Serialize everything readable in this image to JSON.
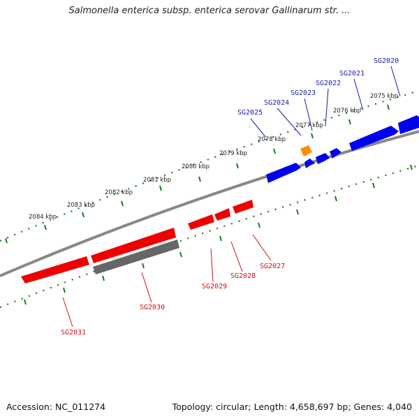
{
  "title": "Salmonella enterica subsp. enterica serovar Gallinarum str. ...",
  "accession": "Accession: NC_011274",
  "topology": "Topology: circular; Length: 4,658,697 bp; Genes: 4,040",
  "colors": {
    "forward": "#0000ee",
    "reverse": "#ee0000",
    "pseudo": "#666666",
    "rna": "#ff8c00",
    "backbone": "#808080",
    "ticks": "#1a7a1a",
    "forward_label": "#1a1aaa",
    "reverse_label": "#cc1111"
  },
  "scale_labels": [
    "2075 kbp",
    "2076 kbp",
    "2077 kbp",
    "2078 kbp",
    "2079 kbp",
    "2080 kbp",
    "2081 kbp",
    "2082 kbp",
    "2083 kbp",
    "2084 kbp"
  ],
  "genes": [
    {
      "id": "SG2020",
      "strand": "forward"
    },
    {
      "id": "SG2021",
      "strand": "forward"
    },
    {
      "id": "SG2022",
      "strand": "forward"
    },
    {
      "id": "SG2023",
      "strand": "forward"
    },
    {
      "id": "SG2024",
      "strand": "forward"
    },
    {
      "id": "SG2025",
      "strand": "forward"
    },
    {
      "id": "SG2027",
      "strand": "reverse"
    },
    {
      "id": "SG2028",
      "strand": "reverse"
    },
    {
      "id": "SG2029",
      "strand": "reverse"
    },
    {
      "id": "SG2030",
      "strand": "reverse"
    },
    {
      "id": "SG2031",
      "strand": "reverse"
    }
  ]
}
